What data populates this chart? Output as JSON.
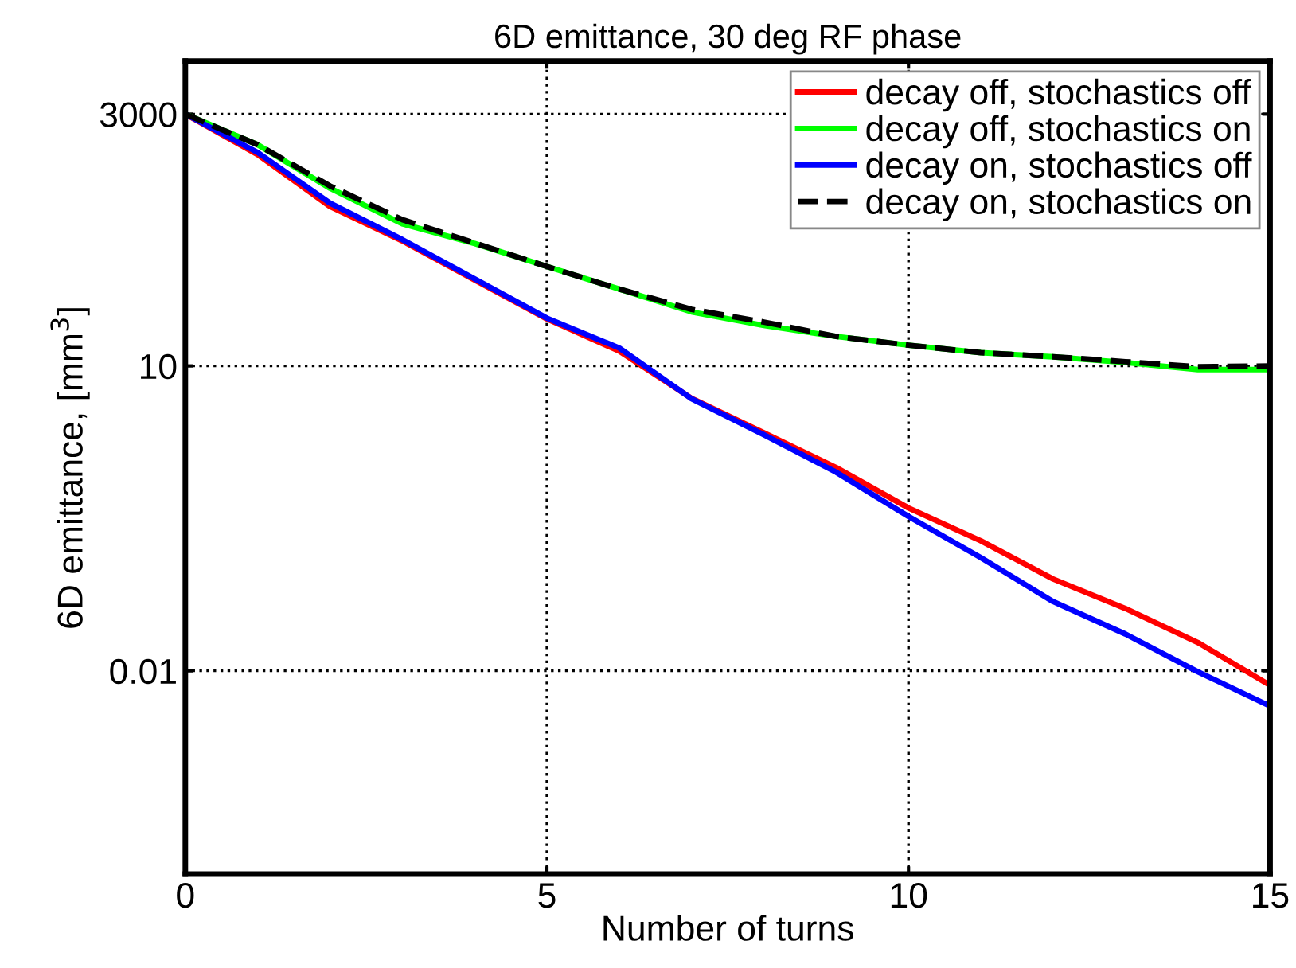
{
  "chart_data": {
    "type": "line",
    "title": "6D emittance, 30 deg RF phase",
    "xlabel": "Number of turns",
    "ylabel": "6D emittance, [mm$^{3}$]",
    "x": [
      0,
      1,
      2,
      3,
      4,
      5,
      6,
      7,
      8,
      9,
      10,
      11,
      12,
      13,
      14,
      15
    ],
    "series": [
      {
        "name": "decay off, stochastics off",
        "color": "#ff0000",
        "line_style": "solid",
        "values": [
          3000,
          1200,
          370,
          170,
          70,
          29,
          14,
          4.8,
          2.2,
          1.0,
          0.4,
          0.19,
          0.08,
          0.041,
          0.019,
          0.0072
        ]
      },
      {
        "name": "decay off, stochastics on",
        "color": "#00ff00",
        "line_style": "solid",
        "values": [
          3000,
          1500,
          560,
          250,
          160,
          95,
          57,
          34,
          25,
          19.5,
          16,
          13.5,
          12.3,
          10.8,
          9.2,
          9.2
        ]
      },
      {
        "name": "decay on, stochastics off",
        "color": "#0000ff",
        "line_style": "solid",
        "values": [
          3000,
          1260,
          400,
          175,
          72,
          29.5,
          15,
          4.75,
          2.1,
          0.9,
          0.33,
          0.13,
          0.048,
          0.023,
          0.0098,
          0.0045
        ]
      },
      {
        "name": "decay on, stochastics on",
        "color": "#000000",
        "line_style": "dashed",
        "values": [
          3000,
          1500,
          590,
          275,
          162,
          95,
          57,
          36,
          27,
          19.5,
          16,
          13.5,
          12.3,
          11,
          9.8,
          10
        ]
      }
    ],
    "log": "y",
    "xlim": [
      0,
      15
    ],
    "xticks": [
      0,
      5,
      10,
      15
    ],
    "ylim": [
      0.0001,
      10000
    ],
    "yticks": [
      0.01,
      10,
      3000
    ],
    "grid": true,
    "legend": "top right",
    "marker": "none"
  }
}
